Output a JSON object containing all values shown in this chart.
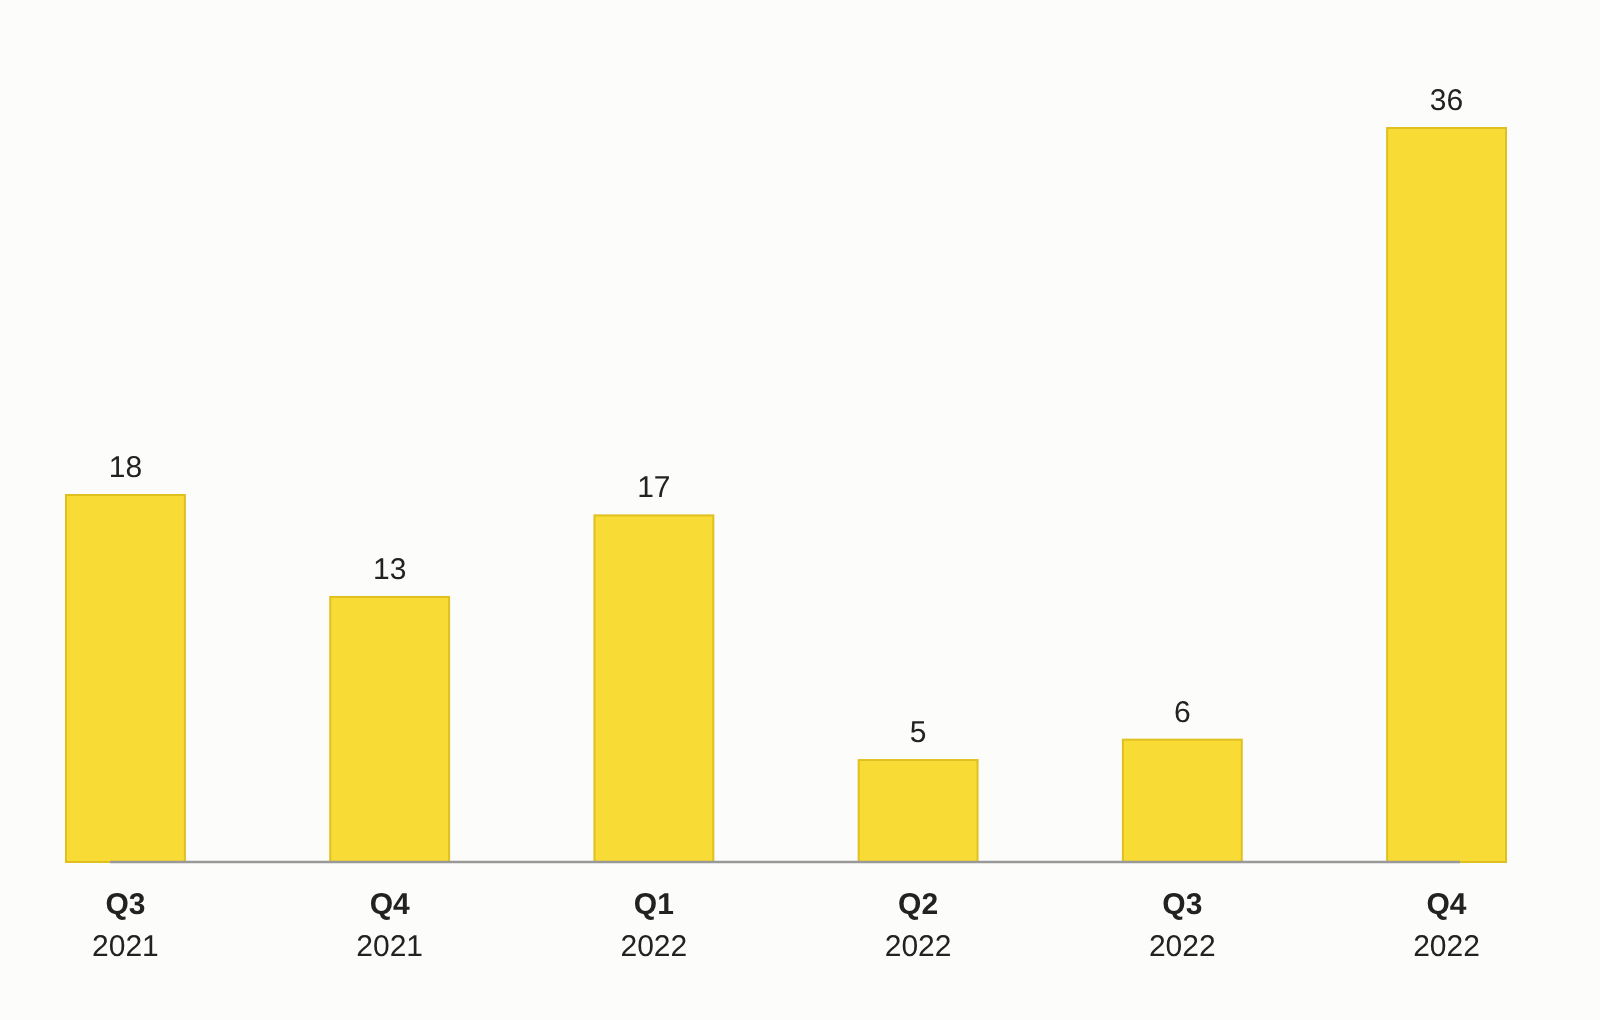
{
  "chart_data": {
    "type": "bar",
    "categories": [
      "Q3\n2021",
      "Q4\n2021",
      "Q1\n2022",
      "Q2\n2022",
      "Q3\n2022",
      "Q4\n2022"
    ],
    "values": [
      18,
      13,
      17,
      5,
      6,
      36
    ],
    "color": "#f8dc35",
    "data_labels": true
  }
}
